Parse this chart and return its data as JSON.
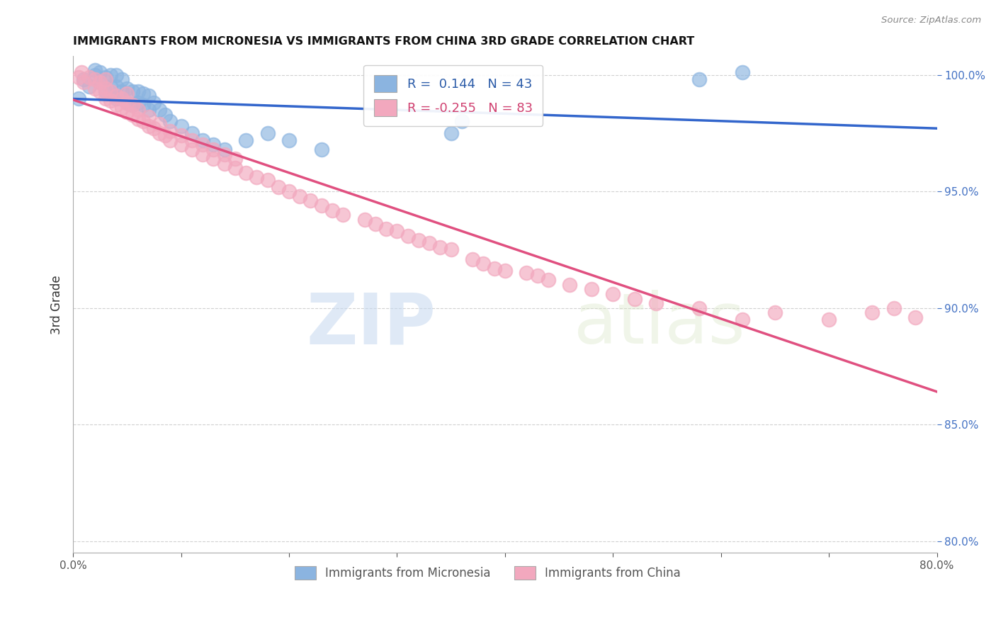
{
  "title": "IMMIGRANTS FROM MICRONESIA VS IMMIGRANTS FROM CHINA 3RD GRADE CORRELATION CHART",
  "source": "Source: ZipAtlas.com",
  "ylabel": "3rd Grade",
  "xlim": [
    0.0,
    0.8
  ],
  "ylim": [
    0.795,
    1.008
  ],
  "xticks": [
    0.0,
    0.1,
    0.2,
    0.3,
    0.4,
    0.5,
    0.6,
    0.7,
    0.8
  ],
  "xticklabels": [
    "0.0%",
    "",
    "",
    "",
    "",
    "",
    "",
    "",
    "80.0%"
  ],
  "yticks": [
    0.8,
    0.85,
    0.9,
    0.95,
    1.0
  ],
  "yticklabels": [
    "80.0%",
    "85.0%",
    "90.0%",
    "95.0%",
    "100.0%"
  ],
  "micronesia_color": "#8BB4E0",
  "china_color": "#F2A8BE",
  "micronesia_line_color": "#3366CC",
  "china_line_color": "#E05080",
  "R_micronesia": 0.144,
  "N_micronesia": 43,
  "R_china": -0.255,
  "N_china": 83,
  "watermark_zip": "ZIP",
  "watermark_atlas": "atlas",
  "micronesia_scatter_x": [
    0.005,
    0.01,
    0.015,
    0.02,
    0.02,
    0.025,
    0.025,
    0.03,
    0.03,
    0.035,
    0.035,
    0.04,
    0.04,
    0.04,
    0.045,
    0.045,
    0.05,
    0.05,
    0.055,
    0.055,
    0.06,
    0.06,
    0.065,
    0.065,
    0.07,
    0.07,
    0.075,
    0.08,
    0.085,
    0.09,
    0.1,
    0.11,
    0.12,
    0.13,
    0.14,
    0.16,
    0.18,
    0.2,
    0.23,
    0.35,
    0.36,
    0.58,
    0.62
  ],
  "micronesia_scatter_y": [
    0.99,
    0.998,
    0.995,
    1.0,
    1.002,
    0.997,
    1.001,
    0.993,
    0.999,
    0.995,
    1.0,
    0.99,
    0.995,
    1.0,
    0.993,
    0.998,
    0.988,
    0.994,
    0.987,
    0.993,
    0.988,
    0.993,
    0.987,
    0.992,
    0.985,
    0.991,
    0.988,
    0.985,
    0.983,
    0.98,
    0.978,
    0.975,
    0.972,
    0.97,
    0.968,
    0.972,
    0.975,
    0.972,
    0.968,
    0.975,
    0.98,
    0.998,
    1.001
  ],
  "china_scatter_x": [
    0.005,
    0.008,
    0.01,
    0.015,
    0.02,
    0.02,
    0.025,
    0.025,
    0.03,
    0.03,
    0.03,
    0.035,
    0.035,
    0.04,
    0.04,
    0.045,
    0.045,
    0.05,
    0.05,
    0.05,
    0.055,
    0.055,
    0.06,
    0.06,
    0.065,
    0.07,
    0.07,
    0.075,
    0.08,
    0.08,
    0.085,
    0.09,
    0.09,
    0.1,
    0.1,
    0.11,
    0.11,
    0.12,
    0.12,
    0.13,
    0.13,
    0.14,
    0.14,
    0.15,
    0.15,
    0.16,
    0.17,
    0.18,
    0.19,
    0.2,
    0.21,
    0.22,
    0.23,
    0.24,
    0.25,
    0.27,
    0.28,
    0.29,
    0.3,
    0.31,
    0.32,
    0.33,
    0.34,
    0.35,
    0.37,
    0.38,
    0.39,
    0.4,
    0.42,
    0.43,
    0.44,
    0.46,
    0.48,
    0.5,
    0.52,
    0.54,
    0.58,
    0.62,
    0.65,
    0.7,
    0.74,
    0.76,
    0.78
  ],
  "china_scatter_y": [
    0.999,
    1.001,
    0.997,
    0.999,
    0.994,
    0.998,
    0.993,
    0.997,
    0.99,
    0.994,
    0.998,
    0.989,
    0.993,
    0.987,
    0.991,
    0.986,
    0.99,
    0.984,
    0.988,
    0.992,
    0.983,
    0.987,
    0.981,
    0.985,
    0.98,
    0.978,
    0.982,
    0.977,
    0.975,
    0.979,
    0.974,
    0.972,
    0.976,
    0.97,
    0.974,
    0.968,
    0.972,
    0.966,
    0.97,
    0.964,
    0.968,
    0.962,
    0.966,
    0.96,
    0.964,
    0.958,
    0.956,
    0.955,
    0.952,
    0.95,
    0.948,
    0.946,
    0.944,
    0.942,
    0.94,
    0.938,
    0.936,
    0.934,
    0.933,
    0.931,
    0.929,
    0.928,
    0.926,
    0.925,
    0.921,
    0.919,
    0.917,
    0.916,
    0.915,
    0.914,
    0.912,
    0.91,
    0.908,
    0.906,
    0.904,
    0.902,
    0.9,
    0.895,
    0.898,
    0.895,
    0.898,
    0.9,
    0.896
  ]
}
